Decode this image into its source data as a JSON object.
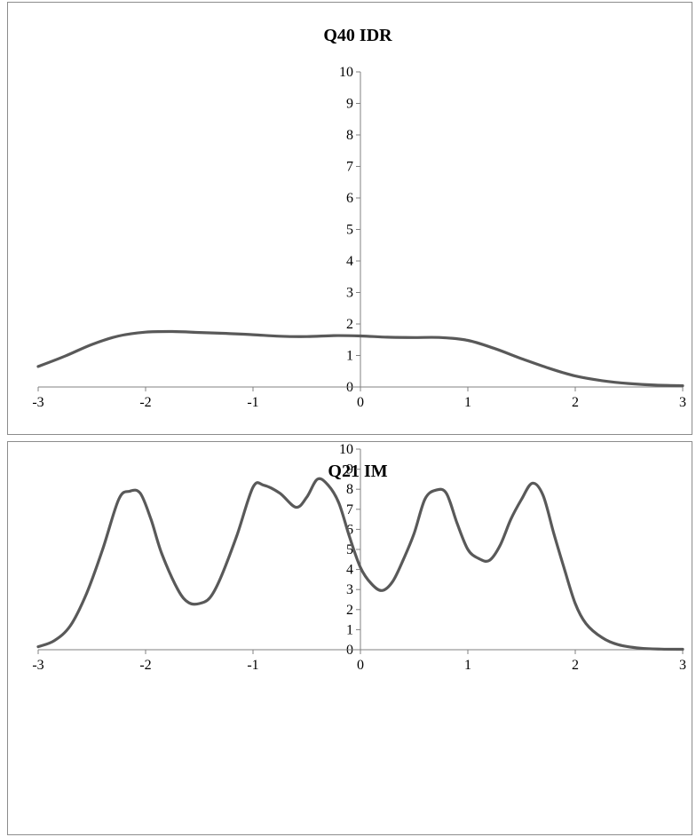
{
  "chart_data": [
    {
      "type": "line",
      "title": "Q40 IDR",
      "xlabel": "",
      "ylabel": "",
      "xlim": [
        -3,
        3
      ],
      "ylim": [
        0,
        10
      ],
      "x_ticks": [
        "-3",
        "-2",
        "-1",
        "0",
        "1",
        "2",
        "3"
      ],
      "y_ticks": [
        "0",
        "1",
        "2",
        "3",
        "4",
        "5",
        "6",
        "7",
        "8",
        "9",
        "10"
      ],
      "grid": false,
      "legend": "none",
      "line_color": "#595959",
      "series": [
        {
          "x": [
            -3,
            -2.75,
            -2.5,
            -2.25,
            -2,
            -1.75,
            -1.5,
            -1.25,
            -1,
            -0.75,
            -0.5,
            -0.25,
            0,
            0.25,
            0.5,
            0.75,
            1,
            1.25,
            1.5,
            1.75,
            2,
            2.25,
            2.5,
            2.75,
            3
          ],
          "values": [
            0.65,
            0.98,
            1.35,
            1.62,
            1.74,
            1.76,
            1.73,
            1.7,
            1.66,
            1.61,
            1.6,
            1.63,
            1.62,
            1.58,
            1.57,
            1.57,
            1.48,
            1.22,
            0.9,
            0.6,
            0.35,
            0.2,
            0.11,
            0.06,
            0.04
          ]
        }
      ]
    },
    {
      "type": "line",
      "title": "Q21 IM",
      "xlabel": "",
      "ylabel": "",
      "xlim": [
        -3,
        3
      ],
      "ylim": [
        0,
        10
      ],
      "x_ticks": [
        "-3",
        "-2",
        "-1",
        "0",
        "1",
        "2",
        "3"
      ],
      "y_ticks": [
        "0",
        "1",
        "2",
        "3",
        "4",
        "5",
        "6",
        "7",
        "8",
        "9",
        "10"
      ],
      "grid": false,
      "legend": "none",
      "line_color": "#595959",
      "series": [
        {
          "x": [
            -3,
            -2.85,
            -2.7,
            -2.55,
            -2.4,
            -2.25,
            -2.15,
            -2.05,
            -1.95,
            -1.85,
            -1.7,
            -1.6,
            -1.5,
            -1.4,
            -1.3,
            -1.15,
            -1.0,
            -0.9,
            -0.75,
            -0.6,
            -0.5,
            -0.4,
            -0.3,
            -0.2,
            -0.1,
            0,
            0.1,
            0.2,
            0.3,
            0.4,
            0.5,
            0.6,
            0.7,
            0.8,
            0.9,
            1.0,
            1.1,
            1.2,
            1.3,
            1.4,
            1.5,
            1.6,
            1.7,
            1.8,
            1.9,
            2.0,
            2.1,
            2.25,
            2.4,
            2.6,
            2.8,
            3
          ],
          "values": [
            0.15,
            0.45,
            1.2,
            2.8,
            5.0,
            7.5,
            7.9,
            7.8,
            6.5,
            4.8,
            3.0,
            2.35,
            2.3,
            2.6,
            3.6,
            5.7,
            8.1,
            8.2,
            7.8,
            7.1,
            7.6,
            8.5,
            8.2,
            7.3,
            5.6,
            4.1,
            3.3,
            2.95,
            3.4,
            4.5,
            5.8,
            7.5,
            7.95,
            7.8,
            6.3,
            5.0,
            4.55,
            4.45,
            5.2,
            6.5,
            7.5,
            8.3,
            7.7,
            5.8,
            4.0,
            2.3,
            1.3,
            0.6,
            0.25,
            0.08,
            0.03,
            0.02
          ]
        }
      ]
    }
  ]
}
